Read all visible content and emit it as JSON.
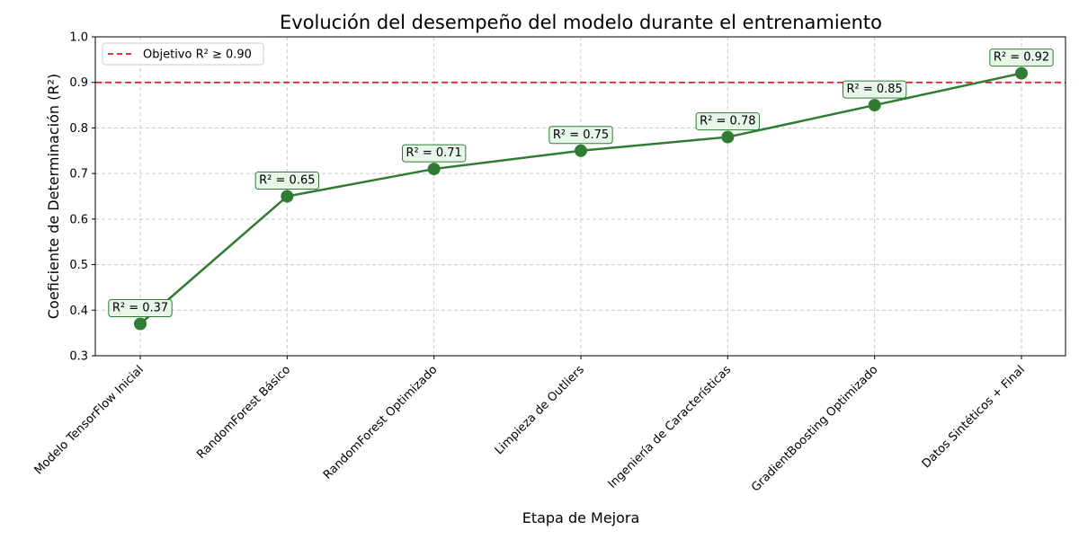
{
  "chart_data": {
    "type": "line",
    "title": "Evolución del desempeño del modelo durante el entrenamiento",
    "xlabel": "Etapa de Mejora",
    "ylabel": "Coeficiente de Determinación (R²)",
    "categories": [
      "Modelo TensorFlow Inicial",
      "RandomForest Básico",
      "RandomForest Optimizado",
      "Limpieza de Outliers",
      "Ingeniería de Características",
      "GradientBoosting Optimizado",
      "Datos Sintéticos + Final"
    ],
    "series": [
      {
        "values": [
          0.37,
          0.65,
          0.71,
          0.75,
          0.78,
          0.85,
          0.92
        ]
      }
    ],
    "data_labels": [
      "R² = 0.37",
      "R² = 0.65",
      "R² = 0.71",
      "R² = 0.75",
      "R² = 0.78",
      "R² = 0.85",
      "R² = 0.92"
    ],
    "ylim": [
      0.3,
      1.0
    ],
    "yticks": [
      "0.3",
      "0.4",
      "0.5",
      "0.6",
      "0.7",
      "0.8",
      "0.9",
      "1.0"
    ],
    "reference_line": {
      "value": 0.9,
      "label": "Objetivo R² ≥ 0.90",
      "style": "dashed",
      "color": "#e41a1c"
    },
    "legend": {
      "placement": "top-left"
    },
    "grid": true,
    "colors": {
      "line": "#2e7d32",
      "marker": "#2e7d32",
      "label_box_fill": "#e8f5e9",
      "label_box_edge": "#2e7d32",
      "grid": "#c8c8c8"
    }
  }
}
